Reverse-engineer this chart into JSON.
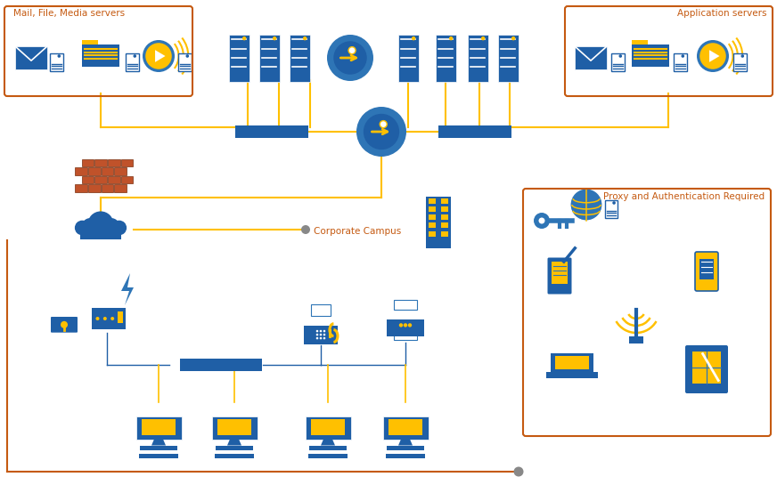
{
  "bg_color": "#ffffff",
  "blue_dark": "#1f5fa6",
  "blue_mid": "#2e75b6",
  "orange_box": "#c55a11",
  "gold": "#ffc000",
  "brick_red": "#c0522a",
  "gray": "#888888",
  "white": "#ffffff",
  "label_mail": "Mail, File, Media servers",
  "label_app": "Application servers",
  "label_campus": "Corporate Campus",
  "label_proxy": "Proxy and Authentication Required"
}
